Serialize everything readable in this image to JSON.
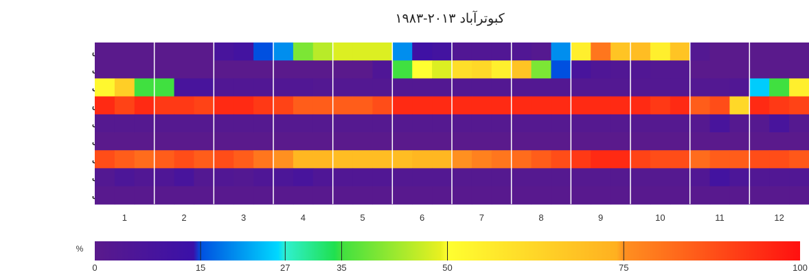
{
  "chart_data": {
    "type": "heatmap",
    "title": "کبوترآباد ۲۰۱۳-۱۹۸۳",
    "xlabel": "",
    "ylabel": "",
    "months": [
      1,
      2,
      3,
      4,
      5,
      6,
      7,
      8,
      9,
      10,
      11,
      12
    ],
    "x_tick_labels": [
      "1",
      "2",
      "3",
      "4",
      "5",
      "6",
      "7",
      "8",
      "9",
      "10",
      "11",
      "12"
    ],
    "rows": [
      {
        "label": "دمای آسایش",
        "values": [
          0,
          0,
          0,
          0,
          0,
          0,
          8,
          10,
          15,
          20,
          40,
          45,
          48,
          48,
          48,
          20,
          12,
          10,
          4,
          4,
          4,
          4,
          2,
          20,
          55,
          80,
          68,
          70,
          55,
          68,
          3,
          0,
          0,
          0,
          0,
          0
        ]
      },
      {
        "label": "استرس گرمایی",
        "values": [
          0,
          0,
          0,
          0,
          0,
          0,
          0,
          0,
          0,
          0,
          0,
          0,
          0,
          0,
          5,
          35,
          50,
          48,
          60,
          62,
          55,
          68,
          40,
          15,
          8,
          5,
          4,
          4,
          3,
          3,
          0,
          0,
          0,
          0,
          0,
          0
        ]
      },
      {
        "label": "استرس سرمایی",
        "values": [
          52,
          65,
          35,
          35,
          8,
          8,
          4,
          4,
          4,
          4,
          4,
          3,
          3,
          3,
          3,
          3,
          3,
          3,
          3,
          3,
          3,
          3,
          3,
          3,
          3,
          3,
          3,
          3,
          3,
          3,
          3,
          3,
          4,
          25,
          35,
          55
        ]
      },
      {
        "label": "تابش",
        "values": [
          95,
          90,
          95,
          92,
          92,
          90,
          95,
          95,
          92,
          90,
          85,
          85,
          85,
          85,
          88,
          95,
          95,
          95,
          95,
          95,
          95,
          95,
          95,
          95,
          95,
          95,
          95,
          95,
          92,
          95,
          85,
          88,
          62,
          95,
          92,
          90
        ]
      },
      {
        "label": "مه آلودگی",
        "values": [
          2,
          2,
          2,
          2,
          2,
          2,
          2,
          2,
          2,
          2,
          2,
          2,
          2,
          2,
          2,
          2,
          2,
          2,
          2,
          2,
          2,
          2,
          2,
          2,
          2,
          2,
          2,
          2,
          2,
          2,
          2,
          8,
          2,
          2,
          8,
          2
        ]
      },
      {
        "label": "هوای شرجی",
        "values": [
          0,
          0,
          0,
          0,
          0,
          0,
          0,
          0,
          0,
          0,
          0,
          0,
          0,
          0,
          0,
          0,
          0,
          0,
          0,
          0,
          0,
          0,
          0,
          0,
          0,
          0,
          0,
          0,
          0,
          0,
          0,
          0,
          0,
          0,
          0,
          0
        ]
      },
      {
        "label": "روز بدون بارندگی",
        "values": [
          88,
          85,
          82,
          85,
          88,
          85,
          88,
          85,
          80,
          75,
          72,
          72,
          70,
          70,
          70,
          70,
          72,
          72,
          75,
          78,
          80,
          82,
          85,
          88,
          92,
          95,
          95,
          90,
          88,
          88,
          82,
          85,
          85,
          88,
          88,
          86
        ]
      },
      {
        "label": "روز بارانی",
        "values": [
          3,
          6,
          4,
          5,
          8,
          3,
          4,
          3,
          5,
          6,
          8,
          5,
          4,
          4,
          4,
          3,
          3,
          3,
          2,
          2,
          2,
          2,
          2,
          2,
          2,
          2,
          2,
          2,
          2,
          2,
          4,
          10,
          6,
          4,
          4,
          4
        ]
      },
      {
        "label": "روز طوفانی",
        "values": [
          1,
          1,
          1,
          1,
          1,
          1,
          1,
          1,
          1,
          1,
          1,
          1,
          1,
          1,
          1,
          1,
          1,
          1,
          1,
          1,
          1,
          1,
          1,
          1,
          1,
          1,
          1,
          1,
          1,
          1,
          1,
          1,
          1,
          1,
          1,
          1
        ]
      }
    ],
    "colorbar": {
      "unit": "%",
      "ticks": [
        0,
        15,
        27,
        35,
        50,
        75,
        100
      ],
      "stops": [
        {
          "v": 0,
          "color": "#5a1a8c"
        },
        {
          "v": 14,
          "color": "#3a10a8"
        },
        {
          "v": 15,
          "color": "#0050e0"
        },
        {
          "v": 26,
          "color": "#00d8ff"
        },
        {
          "v": 27,
          "color": "#30f0d0"
        },
        {
          "v": 34,
          "color": "#20e050"
        },
        {
          "v": 35,
          "color": "#40e040"
        },
        {
          "v": 49,
          "color": "#e8f020"
        },
        {
          "v": 50,
          "color": "#ffff30"
        },
        {
          "v": 74,
          "color": "#ffb020"
        },
        {
          "v": 75,
          "color": "#ff9020"
        },
        {
          "v": 100,
          "color": "#ff1010"
        }
      ]
    },
    "colors": {
      "month_divider": "#ffffff",
      "low_end": "#5a1a8c",
      "high_end": "#ff1010"
    }
  }
}
